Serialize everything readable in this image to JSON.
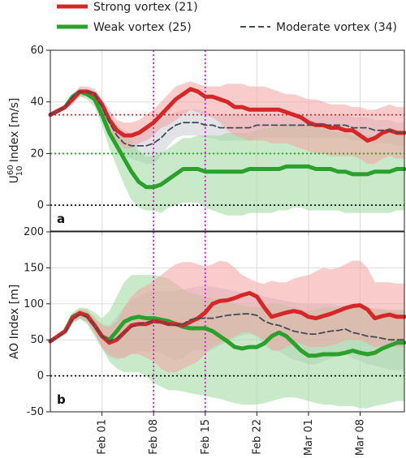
{
  "legend": {
    "strong": "Strong vortex (21)",
    "weak": "Weak vortex (25)",
    "moderate": "Moderate vortex (34)"
  },
  "colors": {
    "strong": "#d62728",
    "weak": "#2ca02c",
    "moderate": "#444b56",
    "strong_fill": "#f4a3a3",
    "weak_fill": "#9ad99a",
    "moderate_fill": "#c8ccd4",
    "vline": "#cc22cc",
    "grid": "#dddddd"
  },
  "x_axis": {
    "tick_labels": [
      "Feb 01",
      "Feb 08",
      "Feb 15",
      "Feb 22",
      "Mar 01",
      "Mar 08"
    ],
    "tick_days": [
      32,
      39,
      46,
      53,
      60,
      67
    ],
    "range_days": [
      25,
      73
    ],
    "event_days": [
      39,
      46
    ]
  },
  "chart_data": [
    {
      "type": "line",
      "panel_label": "a",
      "ylabel_main": "U",
      "ylabel_super": "60",
      "ylabel_sub": "10",
      "ylabel_rest": " Index [m/s]",
      "ylim": [
        -10,
        60
      ],
      "yticks": [
        0,
        20,
        40,
        60
      ],
      "grid": true,
      "hlines": [
        {
          "y": 35,
          "color": "strong"
        },
        {
          "y": 20,
          "color": "weak"
        },
        {
          "y": 0,
          "color": "black"
        }
      ],
      "x": [
        25,
        27,
        28,
        29,
        30,
        31,
        32,
        33,
        34,
        35,
        36,
        37,
        38,
        39,
        40,
        41,
        42,
        43,
        44,
        45,
        46,
        47,
        48,
        49,
        50,
        51,
        52,
        53,
        54,
        55,
        56,
        57,
        58,
        59,
        60,
        61,
        62,
        63,
        64,
        65,
        66,
        67,
        68,
        69,
        70,
        71,
        72,
        73
      ],
      "series": [
        {
          "name": "Strong vortex (21)",
          "key": "strong",
          "values": [
            35,
            38,
            41,
            44,
            44,
            43,
            39,
            33,
            29,
            27,
            27,
            28,
            30,
            32,
            35,
            38,
            41,
            43,
            45,
            44,
            42,
            42,
            41,
            40,
            38,
            38,
            37,
            37,
            37,
            37,
            37,
            36,
            35,
            34,
            32,
            31,
            31,
            30,
            30,
            29,
            29,
            27,
            25,
            26,
            28,
            29,
            28,
            28
          ],
          "upper": [
            35,
            39,
            43,
            46,
            46,
            45,
            41,
            37,
            33,
            32,
            32,
            33,
            35,
            37,
            40,
            43,
            46,
            47,
            48,
            47,
            46,
            46,
            46,
            47,
            47,
            47,
            46,
            46,
            46,
            45,
            44,
            43,
            43,
            42,
            41,
            41,
            40,
            39,
            39,
            39,
            38,
            38,
            37,
            37,
            38,
            39,
            38,
            38
          ],
          "lower": [
            35,
            37,
            39,
            42,
            42,
            41,
            37,
            29,
            25,
            22,
            22,
            24,
            25,
            27,
            30,
            31,
            33,
            35,
            37,
            36,
            35,
            34,
            32,
            29,
            27,
            26,
            25,
            25,
            25,
            24,
            24,
            24,
            23,
            22,
            21,
            20,
            20,
            19,
            19,
            19,
            19,
            18,
            16,
            16,
            18,
            19,
            18,
            18
          ]
        },
        {
          "name": "Weak vortex (25)",
          "key": "weak",
          "values": [
            35,
            38,
            42,
            44,
            43,
            41,
            35,
            28,
            23,
            18,
            13,
            9,
            7,
            7,
            8,
            10,
            12,
            14,
            14,
            14,
            13,
            13,
            13,
            13,
            13,
            13,
            14,
            14,
            14,
            14,
            14,
            15,
            15,
            15,
            15,
            14,
            14,
            14,
            13,
            13,
            12,
            12,
            12,
            13,
            13,
            13,
            14,
            14
          ],
          "upper": [
            35,
            39,
            43,
            45,
            45,
            43,
            39,
            34,
            31,
            28,
            25,
            21,
            19,
            19,
            20,
            22,
            24,
            26,
            26,
            27,
            27,
            27,
            27,
            28,
            28,
            28,
            28,
            29,
            30,
            30,
            31,
            31,
            31,
            31,
            31,
            30,
            30,
            29,
            28,
            28,
            27,
            27,
            27,
            27,
            28,
            28,
            28,
            28
          ],
          "lower": [
            35,
            37,
            40,
            42,
            41,
            38,
            31,
            22,
            15,
            8,
            2,
            -1,
            -2,
            -2,
            -3,
            -1,
            0,
            1,
            1,
            1,
            -1,
            -2,
            -3,
            -4,
            -4,
            -4,
            -3,
            -3,
            -3,
            -3,
            -2,
            -2,
            -1,
            -1,
            -2,
            -2,
            -2,
            -2,
            -2,
            -3,
            -3,
            -3,
            -3,
            -3,
            -3,
            -3,
            -2,
            -2
          ]
        },
        {
          "name": "Moderate vortex (34)",
          "key": "moderate",
          "values": [
            35,
            38,
            42,
            44,
            44,
            43,
            38,
            32,
            27,
            24,
            23,
            23,
            23,
            24,
            26,
            29,
            31,
            32,
            32,
            32,
            31,
            31,
            30,
            30,
            30,
            30,
            30,
            31,
            31,
            31,
            31,
            31,
            31,
            31,
            31,
            31,
            31,
            31,
            31,
            31,
            30,
            30,
            30,
            29,
            29,
            29,
            28,
            28
          ],
          "upper": [
            35,
            39,
            43,
            45,
            45,
            44,
            40,
            35,
            31,
            29,
            28,
            29,
            30,
            32,
            33,
            35,
            36,
            37,
            37,
            37,
            36,
            35,
            35,
            35,
            35,
            35,
            35,
            35,
            35,
            35,
            35,
            35,
            35,
            35,
            35,
            35,
            35,
            35,
            35,
            35,
            34,
            34,
            34,
            33,
            33,
            33,
            32,
            32
          ],
          "lower": [
            35,
            37,
            41,
            43,
            43,
            42,
            36,
            29,
            23,
            19,
            18,
            17,
            16,
            16,
            19,
            23,
            26,
            27,
            27,
            27,
            26,
            26,
            25,
            25,
            25,
            25,
            25,
            26,
            26,
            26,
            26,
            26,
            26,
            26,
            26,
            26,
            26,
            26,
            26,
            26,
            25,
            25,
            25,
            24,
            24,
            24,
            23,
            23
          ]
        }
      ]
    },
    {
      "type": "line",
      "panel_label": "b",
      "ylabel_main": "AO Index [m]",
      "ylim": [
        -50,
        200
      ],
      "yticks": [
        -50,
        0,
        50,
        100,
        150,
        200
      ],
      "grid": true,
      "hlines": [
        {
          "y": 0,
          "color": "black"
        }
      ],
      "x": [
        25,
        27,
        28,
        29,
        30,
        31,
        32,
        33,
        34,
        35,
        36,
        37,
        38,
        39,
        40,
        41,
        42,
        43,
        44,
        45,
        46,
        47,
        48,
        49,
        50,
        51,
        52,
        53,
        54,
        55,
        56,
        57,
        58,
        59,
        60,
        61,
        62,
        63,
        64,
        65,
        66,
        67,
        68,
        69,
        70,
        71,
        72,
        73
      ],
      "series": [
        {
          "name": "Strong vortex (21)",
          "key": "strong",
          "values": [
            48,
            62,
            80,
            87,
            83,
            70,
            55,
            46,
            50,
            60,
            70,
            72,
            72,
            76,
            75,
            72,
            72,
            70,
            75,
            80,
            88,
            100,
            104,
            105,
            108,
            112,
            115,
            110,
            95,
            82,
            85,
            88,
            90,
            88,
            82,
            80,
            83,
            86,
            90,
            94,
            97,
            98,
            92,
            80,
            83,
            85,
            82,
            82
          ],
          "upper": [
            48,
            66,
            86,
            93,
            91,
            80,
            70,
            68,
            75,
            95,
            110,
            120,
            125,
            132,
            140,
            148,
            155,
            158,
            158,
            155,
            152,
            155,
            160,
            158,
            150,
            140,
            135,
            130,
            128,
            132,
            130,
            130,
            135,
            138,
            140,
            145,
            150,
            148,
            150,
            155,
            160,
            160,
            150,
            130,
            130,
            130,
            128,
            128
          ],
          "lower": [
            48,
            58,
            74,
            81,
            75,
            60,
            40,
            28,
            25,
            25,
            30,
            30,
            25,
            20,
            10,
            5,
            5,
            10,
            15,
            20,
            30,
            40,
            45,
            50,
            55,
            60,
            60,
            55,
            50,
            35,
            35,
            40,
            45,
            45,
            40,
            40,
            40,
            42,
            45,
            50,
            50,
            50,
            45,
            40,
            42,
            42,
            40,
            40
          ]
        },
        {
          "name": "Weak vortex (25)",
          "key": "weak",
          "values": [
            48,
            62,
            82,
            87,
            84,
            70,
            55,
            50,
            62,
            75,
            80,
            82,
            80,
            80,
            78,
            76,
            72,
            68,
            66,
            66,
            66,
            62,
            55,
            48,
            40,
            38,
            40,
            40,
            45,
            55,
            60,
            55,
            45,
            35,
            28,
            28,
            30,
            30,
            30,
            32,
            35,
            32,
            30,
            32,
            38,
            42,
            46,
            46
          ],
          "upper": [
            48,
            66,
            88,
            95,
            94,
            88,
            80,
            90,
            110,
            130,
            140,
            140,
            140,
            140,
            138,
            135,
            128,
            120,
            115,
            112,
            110,
            108,
            105,
            102,
            100,
            98,
            96,
            95,
            98,
            100,
            100,
            98,
            95,
            92,
            90,
            92,
            95,
            95,
            95,
            96,
            98,
            97,
            95,
            92,
            92,
            90,
            90,
            90
          ],
          "lower": [
            48,
            58,
            74,
            79,
            72,
            55,
            38,
            20,
            10,
            5,
            5,
            5,
            0,
            -10,
            -15,
            -20,
            -20,
            -22,
            -24,
            -26,
            -28,
            -30,
            -32,
            -35,
            -38,
            -40,
            -40,
            -40,
            -38,
            -35,
            -32,
            -30,
            -30,
            -32,
            -35,
            -38,
            -40,
            -40,
            -42,
            -42,
            -42,
            -45,
            -45,
            -42,
            -40,
            -38,
            -35,
            -35
          ]
        },
        {
          "name": "Moderate vortex (34)",
          "key": "moderate",
          "values": [
            48,
            60,
            78,
            85,
            82,
            70,
            55,
            48,
            52,
            60,
            68,
            72,
            74,
            76,
            75,
            72,
            70,
            72,
            78,
            80,
            80,
            80,
            82,
            84,
            85,
            86,
            86,
            84,
            76,
            72,
            70,
            66,
            62,
            60,
            58,
            58,
            60,
            62,
            63,
            65,
            60,
            58,
            55,
            54,
            52,
            50,
            50,
            50
          ],
          "upper": [
            48,
            64,
            84,
            91,
            90,
            82,
            72,
            70,
            82,
            95,
            105,
            110,
            115,
            118,
            118,
            118,
            118,
            120,
            122,
            124,
            125,
            124,
            122,
            120,
            118,
            116,
            114,
            112,
            110,
            108,
            106,
            104,
            102,
            100,
            100,
            100,
            100,
            100,
            98,
            98,
            96,
            95,
            94,
            94,
            93,
            92,
            92,
            92
          ],
          "lower": [
            48,
            56,
            72,
            79,
            74,
            58,
            38,
            26,
            22,
            25,
            31,
            34,
            33,
            34,
            32,
            26,
            22,
            24,
            34,
            36,
            35,
            36,
            42,
            48,
            52,
            56,
            58,
            56,
            42,
            36,
            34,
            28,
            22,
            20,
            16,
            16,
            20,
            24,
            28,
            32,
            24,
            21,
            16,
            14,
            11,
            8,
            8,
            8
          ]
        }
      ]
    }
  ]
}
